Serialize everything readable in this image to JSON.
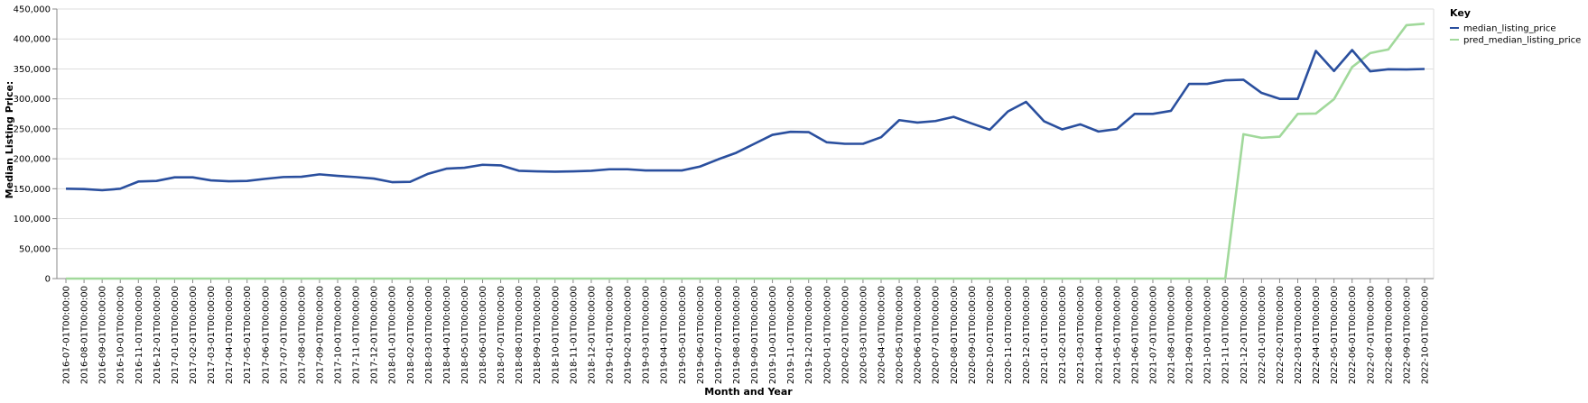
{
  "chart_data": {
    "type": "line",
    "xlabel": "Month and Year",
    "ylabel": "Median Listing Price:",
    "ylim": [
      0,
      450000
    ],
    "yticks": [
      0,
      50000,
      100000,
      150000,
      200000,
      250000,
      300000,
      350000,
      400000,
      450000
    ],
    "ytick_labels": [
      "0",
      "50,000",
      "100,000",
      "150,000",
      "200,000",
      "250,000",
      "300,000",
      "350,000",
      "400,000",
      "450,000"
    ],
    "grid": true,
    "legend": {
      "title": "Key",
      "placement": "top-right-outside"
    },
    "x": [
      "2016-07-01T00:00:00",
      "2016-08-01T00:00:00",
      "2016-09-01T00:00:00",
      "2016-10-01T00:00:00",
      "2016-11-01T00:00:00",
      "2016-12-01T00:00:00",
      "2017-01-01T00:00:00",
      "2017-02-01T00:00:00",
      "2017-03-01T00:00:00",
      "2017-04-01T00:00:00",
      "2017-05-01T00:00:00",
      "2017-06-01T00:00:00",
      "2017-07-01T00:00:00",
      "2017-08-01T00:00:00",
      "2017-09-01T00:00:00",
      "2017-10-01T00:00:00",
      "2017-11-01T00:00:00",
      "2017-12-01T00:00:00",
      "2018-01-01T00:00:00",
      "2018-02-01T00:00:00",
      "2018-03-01T00:00:00",
      "2018-04-01T00:00:00",
      "2018-05-01T00:00:00",
      "2018-06-01T00:00:00",
      "2018-07-01T00:00:00",
      "2018-08-01T00:00:00",
      "2018-09-01T00:00:00",
      "2018-10-01T00:00:00",
      "2018-11-01T00:00:00",
      "2018-12-01T00:00:00",
      "2019-01-01T00:00:00",
      "2019-02-01T00:00:00",
      "2019-03-01T00:00:00",
      "2019-04-01T00:00:00",
      "2019-05-01T00:00:00",
      "2019-06-01T00:00:00",
      "2019-07-01T00:00:00",
      "2019-08-01T00:00:00",
      "2019-09-01T00:00:00",
      "2019-10-01T00:00:00",
      "2019-11-01T00:00:00",
      "2019-12-01T00:00:00",
      "2020-01-01T00:00:00",
      "2020-02-01T00:00:00",
      "2020-03-01T00:00:00",
      "2020-04-01T00:00:00",
      "2020-05-01T00:00:00",
      "2020-06-01T00:00:00",
      "2020-07-01T00:00:00",
      "2020-08-01T00:00:00",
      "2020-09-01T00:00:00",
      "2020-10-01T00:00:00",
      "2020-11-01T00:00:00",
      "2020-12-01T00:00:00",
      "2021-01-01T00:00:00",
      "2021-02-01T00:00:00",
      "2021-03-01T00:00:00",
      "2021-04-01T00:00:00",
      "2021-05-01T00:00:00",
      "2021-06-01T00:00:00",
      "2021-07-01T00:00:00",
      "2021-08-01T00:00:00",
      "2021-09-01T00:00:00",
      "2021-10-01T00:00:00",
      "2021-11-01T00:00:00",
      "2021-12-01T00:00:00",
      "2022-01-01T00:00:00",
      "2022-02-01T00:00:00",
      "2022-03-01T00:00:00",
      "2022-04-01T00:00:00",
      "2022-05-01T00:00:00",
      "2022-06-01T00:00:00",
      "2022-07-01T00:00:00",
      "2022-08-01T00:00:00",
      "2022-09-01T00:00:00",
      "2022-10-01T00:00:00"
    ],
    "series": [
      {
        "name": "median_listing_price",
        "color": "#2a4f9e",
        "values": [
          150000,
          149500,
          147500,
          150000,
          162000,
          163000,
          169000,
          169000,
          164000,
          162500,
          163000,
          166500,
          169500,
          170000,
          174000,
          171500,
          169500,
          167000,
          161000,
          161500,
          175000,
          183500,
          185000,
          190000,
          189000,
          180000,
          179000,
          178500,
          179000,
          180000,
          182500,
          182500,
          180500,
          180500,
          180500,
          187000,
          199000,
          210000,
          225000,
          240000,
          245000,
          244500,
          227500,
          225000,
          225000,
          236000,
          264500,
          260500,
          263000,
          270000,
          259000,
          248500,
          279000,
          295000,
          262500,
          249000,
          257500,
          245500,
          249500,
          275000,
          275000,
          280000,
          325000,
          325000,
          331000,
          332000,
          310000,
          300000,
          300000,
          380000,
          346500,
          381500,
          346000,
          349500,
          349000,
          349900
        ]
      },
      {
        "name": "pred_median_listing_price",
        "color": "#a1d99b",
        "values": [
          0,
          0,
          0,
          0,
          0,
          0,
          0,
          0,
          0,
          0,
          0,
          0,
          0,
          0,
          0,
          0,
          0,
          0,
          0,
          0,
          0,
          0,
          0,
          0,
          0,
          0,
          0,
          0,
          0,
          0,
          0,
          0,
          0,
          0,
          0,
          0,
          0,
          0,
          0,
          0,
          0,
          0,
          0,
          0,
          0,
          0,
          0,
          0,
          0,
          0,
          0,
          0,
          0,
          0,
          0,
          0,
          0,
          0,
          0,
          0,
          0,
          0,
          0,
          0,
          0,
          241000,
          235000,
          237000,
          275000,
          275500,
          299500,
          353000,
          376500,
          382500,
          423000,
          425500
        ]
      }
    ]
  }
}
